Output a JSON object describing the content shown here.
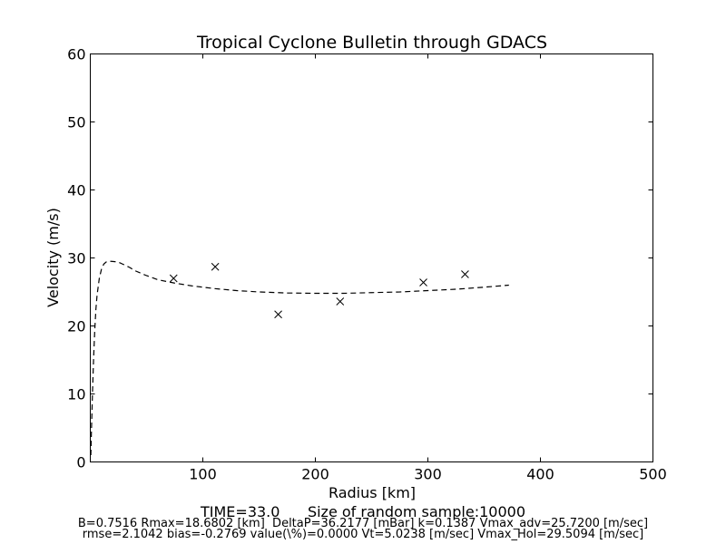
{
  "chart_data": {
    "type": "line",
    "title": "Tropical Cyclone Bulletin through GDACS",
    "xlabel": "Radius [km]",
    "ylabel": "Velocity (m/s)",
    "xlim": [
      0,
      500
    ],
    "ylim": [
      0,
      60
    ],
    "xticks": [
      "100",
      "200",
      "300",
      "400",
      "500"
    ],
    "yticks": [
      "0",
      "10",
      "20",
      "30",
      "40",
      "50",
      "60"
    ],
    "grid": false,
    "legend": "none",
    "series": [
      {
        "style": "dashed-line",
        "color": "#000000",
        "x": [
          0.5,
          1,
          2,
          3,
          4,
          5,
          6,
          8,
          10,
          12,
          14,
          16,
          18.7,
          22,
          26,
          30,
          35,
          40,
          50,
          60,
          75,
          90,
          110,
          130,
          150,
          175,
          200,
          225,
          250,
          275,
          300,
          325,
          350,
          372
        ],
        "y": [
          1.0,
          4.5,
          10.5,
          15.5,
          19.5,
          22.5,
          24.5,
          27.0,
          28.4,
          29.1,
          29.4,
          29.5,
          29.5,
          29.45,
          29.3,
          29.0,
          28.6,
          28.1,
          27.4,
          26.8,
          26.3,
          25.9,
          25.5,
          25.2,
          25.0,
          24.85,
          24.8,
          24.8,
          24.9,
          25.0,
          25.2,
          25.4,
          25.7,
          26.0
        ]
      },
      {
        "style": "x-markers",
        "color": "#000000",
        "x": [
          74,
          111,
          167,
          222,
          296,
          333
        ],
        "y": [
          27.0,
          28.7,
          21.7,
          23.6,
          26.4,
          27.6
        ]
      }
    ]
  },
  "footer": {
    "time_line": "TIME=33.0      Size of random sample:10000",
    "info_line_1": "B=0.7516 Rmax=18.6802 [km]  DeltaP=36.2177 [mBar] k=0.1387 Vmax_adv=25.7200 [m/sec]",
    "info_line_2": "rmse=2.1042 bias=-0.2769 value(\\%)=0.0000 Vt=5.0238 [m/sec] Vmax_Hol=29.5094 [m/sec]"
  }
}
